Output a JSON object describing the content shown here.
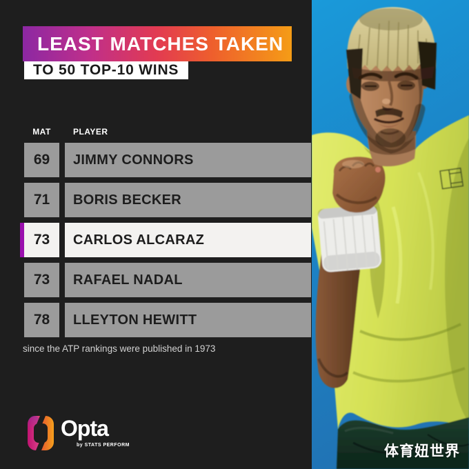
{
  "header": {
    "title": "LEAST MATCHES TAKEN",
    "subtitle": "TO 50 TOP-10 WINS"
  },
  "table": {
    "headers": {
      "mat": "MAT",
      "player": "PLAYER"
    },
    "rows": [
      {
        "mat": "69",
        "player": "JIMMY CONNORS",
        "highlight": false
      },
      {
        "mat": "71",
        "player": "BORIS BECKER",
        "highlight": false
      },
      {
        "mat": "73",
        "player": "CARLOS ALCARAZ",
        "highlight": true
      },
      {
        "mat": "73",
        "player": "RAFAEL NADAL",
        "highlight": false
      },
      {
        "mat": "78",
        "player": "LLEYTON HEWITT",
        "highlight": false
      }
    ]
  },
  "footnote": "since the ATP rankings were published in 1973",
  "branding": {
    "logo_text": "Opta",
    "logo_sub": "by STATS PERFORM"
  },
  "watermark": "体育妞世界",
  "colors": {
    "background": "#1e1e1e",
    "banner_gradient_start": "#8c28a3",
    "banner_gradient_mid": "#e23b51",
    "banner_gradient_end": "#f59c16",
    "row_gray": "#9b9b9b",
    "row_highlight": "#f3f2f0",
    "highlight_bar_purple": "#9a0fae",
    "photo_sky_blue": "#1a8fd2",
    "shirt_volt_yellow": "#d8e35a",
    "shorts_dark_green": "#16362a"
  },
  "chart_data": {
    "type": "table",
    "title": "LEAST MATCHES TAKEN TO 50 TOP-10 WINS",
    "columns": [
      "MAT",
      "PLAYER"
    ],
    "rows": [
      [
        69,
        "JIMMY CONNORS"
      ],
      [
        71,
        "BORIS BECKER"
      ],
      [
        73,
        "CARLOS ALCARAZ"
      ],
      [
        73,
        "RAFAEL NADAL"
      ],
      [
        78,
        "LLEYTON HEWITT"
      ]
    ],
    "highlighted_row": "CARLOS ALCARAZ",
    "note": "since the ATP rankings were published in 1973"
  }
}
